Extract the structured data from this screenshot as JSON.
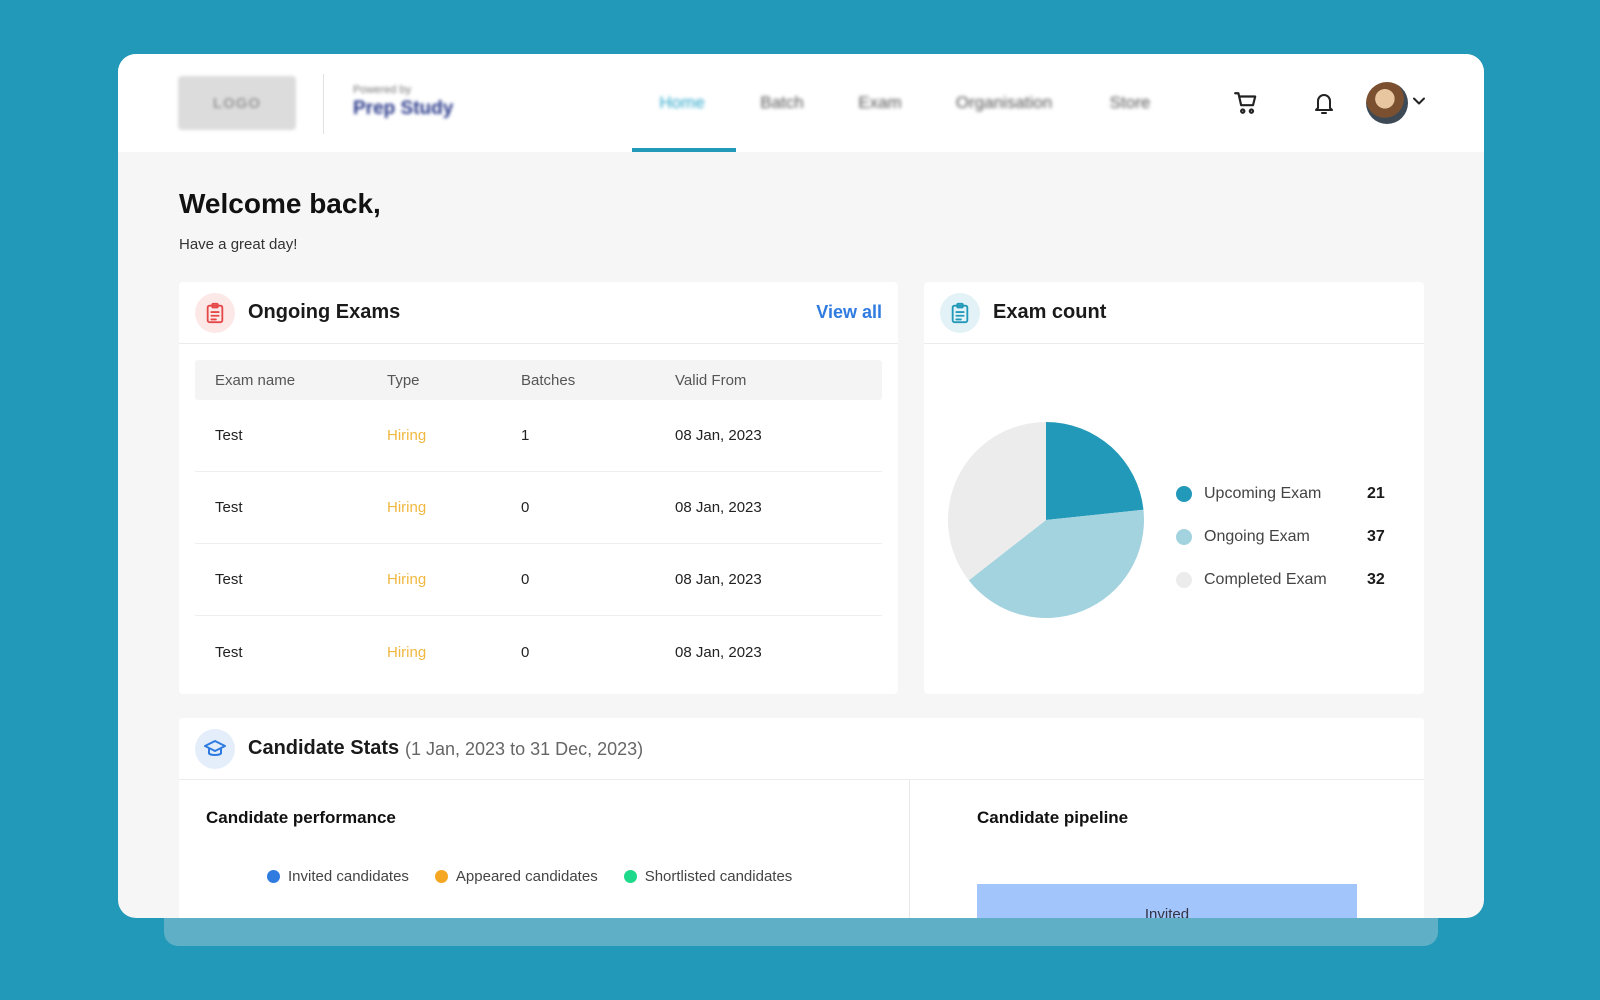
{
  "header": {
    "logo_text": "LOGO",
    "powered_by": "Powered by",
    "brand": "Prep Study",
    "nav": [
      {
        "label": "Home",
        "active": true
      },
      {
        "label": "Batch",
        "active": false
      },
      {
        "label": "Exam",
        "active": false
      },
      {
        "label": "Organisation",
        "active": false
      },
      {
        "label": "Store",
        "active": false
      }
    ]
  },
  "welcome": {
    "title": "Welcome back,",
    "subtitle": "Have a great day!"
  },
  "ongoing_exams": {
    "title": "Ongoing Exams",
    "view_all": "View all",
    "columns": [
      "Exam name",
      "Type",
      "Batches",
      "Valid From"
    ],
    "rows": [
      {
        "name": "Test",
        "type": "Hiring",
        "batches": "1",
        "valid_from": "08 Jan, 2023"
      },
      {
        "name": "Test",
        "type": "Hiring",
        "batches": "0",
        "valid_from": "08 Jan, 2023"
      },
      {
        "name": "Test",
        "type": "Hiring",
        "batches": "0",
        "valid_from": "08 Jan, 2023"
      },
      {
        "name": "Test",
        "type": "Hiring",
        "batches": "0",
        "valid_from": "08 Jan, 2023"
      }
    ]
  },
  "exam_count": {
    "title": "Exam count",
    "items": [
      {
        "label": "Upcoming Exam",
        "value": "21",
        "color": "#2299b8"
      },
      {
        "label": "Ongoing Exam",
        "value": "37",
        "color": "#a3d3df"
      },
      {
        "label": "Completed Exam",
        "value": "32",
        "color": "#ececec"
      }
    ]
  },
  "candidate_stats": {
    "title": "Candidate Stats",
    "range": "(1 Jan, 2023 to 31 Dec, 2023)",
    "performance_title": "Candidate performance",
    "performance_legend": [
      {
        "label": "Invited candidates",
        "color": "#2f7be0"
      },
      {
        "label": "Appeared candidates",
        "color": "#f5a623"
      },
      {
        "label": "Shortlisted candidates",
        "color": "#1ed98a"
      }
    ],
    "pipeline_title": "Candidate pipeline",
    "pipeline_first_stage": "Invited"
  },
  "colors": {
    "accent": "#2299b8",
    "link": "#2f7be0",
    "hiring": "#f0b840"
  }
}
